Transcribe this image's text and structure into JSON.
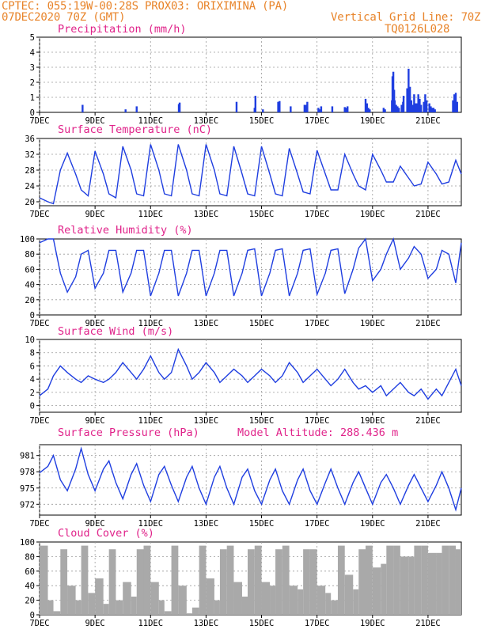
{
  "header": {
    "line1": "CPTEC:   055:19W-00:28S   PROX03: ORIXIMINA (PA)",
    "line2_left": "07DEC2020 70Z (GMT)",
    "line2_right": "Vertical Grid Line: 70Z",
    "line3_right": "TQ0126L028"
  },
  "colors": {
    "header": "#e8842a",
    "title": "#e0238a",
    "series": "#1f3ee0",
    "cloud": "#a9a9a9",
    "grid": "#9a9a9a"
  },
  "x_axis": {
    "labels": [
      "7DEC",
      "9DEC",
      "11DEC",
      "13DEC",
      "15DEC",
      "17DEC",
      "19DEC",
      "21DEC"
    ],
    "label_days": [
      0,
      2,
      4,
      6,
      8,
      10,
      12,
      14
    ],
    "range_days": [
      0,
      15.2
    ]
  },
  "chart_data": [
    {
      "type": "bar",
      "title": "Precipitation (mm/h)",
      "ylim": [
        0,
        5
      ],
      "yticks": [
        0,
        1,
        2,
        3,
        4,
        5
      ],
      "x_days": [
        1.55,
        3.1,
        3.5,
        5.02,
        5.05,
        7.1,
        7.75,
        7.78,
        8.05,
        8.6,
        8.65,
        9.05,
        9.55,
        9.6,
        9.62,
        9.65,
        10.05,
        10.1,
        10.15,
        10.55,
        11.0,
        11.05,
        11.1,
        11.75,
        11.8,
        11.85,
        11.9,
        12.4,
        12.45,
        12.7,
        12.72,
        12.75,
        12.78,
        12.8,
        12.85,
        12.9,
        12.95,
        13.05,
        13.1,
        13.12,
        13.25,
        13.3,
        13.35,
        13.4,
        13.45,
        13.5,
        13.55,
        13.6,
        13.65,
        13.7,
        13.75,
        13.85,
        13.9,
        13.95,
        14.05,
        14.1,
        14.15,
        14.2,
        14.25,
        14.9,
        14.95,
        15.0,
        15.05
      ],
      "values": [
        0.5,
        0.2,
        0.4,
        0.55,
        0.65,
        0.7,
        0.3,
        1.1,
        0.2,
        0.7,
        0.75,
        0.4,
        0.5,
        0.5,
        0.4,
        0.7,
        0.3,
        0.2,
        0.4,
        0.4,
        0.35,
        0.3,
        0.4,
        0.9,
        0.6,
        0.3,
        0.2,
        0.3,
        0.2,
        0.8,
        2.4,
        2.7,
        1.5,
        0.8,
        0.5,
        0.4,
        0.3,
        0.5,
        0.7,
        1.1,
        1.6,
        2.9,
        1.7,
        0.8,
        0.5,
        1.2,
        0.6,
        0.6,
        1.2,
        0.9,
        0.5,
        0.7,
        1.2,
        0.8,
        0.6,
        0.4,
        0.3,
        0.3,
        0.2,
        0.8,
        1.2,
        1.3,
        0.7
      ]
    },
    {
      "type": "line",
      "title": "Surface Temperature (nC)",
      "ylim": [
        19,
        36
      ],
      "yticks": [
        20,
        24,
        28,
        32,
        36
      ],
      "x_days": [
        0,
        0.3,
        0.5,
        0.75,
        1.0,
        1.3,
        1.5,
        1.75,
        2.0,
        2.3,
        2.5,
        2.75,
        3.0,
        3.3,
        3.5,
        3.75,
        4.0,
        4.3,
        4.5,
        4.75,
        5.0,
        5.3,
        5.5,
        5.75,
        6.0,
        6.3,
        6.5,
        6.75,
        7.0,
        7.3,
        7.5,
        7.75,
        8.0,
        8.3,
        8.5,
        8.75,
        9.0,
        9.3,
        9.5,
        9.75,
        10.0,
        10.3,
        10.5,
        10.75,
        11.0,
        11.3,
        11.5,
        11.75,
        12.0,
        12.3,
        12.5,
        12.75,
        13.0,
        13.3,
        13.5,
        13.75,
        14.0,
        14.3,
        14.5,
        14.75,
        15.0,
        15.2
      ],
      "values": [
        21,
        20,
        19.5,
        28,
        32.3,
        27,
        23,
        21.5,
        32.8,
        27,
        22,
        21,
        34,
        28,
        22,
        21.5,
        34.5,
        28,
        22,
        21.5,
        34.5,
        28,
        22,
        21.5,
        34.5,
        28,
        22,
        21.5,
        34,
        27,
        22,
        21.5,
        34,
        27,
        22,
        21.5,
        33.5,
        27,
        22.5,
        22,
        33,
        27,
        23,
        23,
        32,
        27,
        24,
        23,
        32,
        28,
        25,
        25,
        29,
        26,
        24,
        24.5,
        30,
        27,
        24.5,
        25,
        30.5,
        27
      ]
    },
    {
      "type": "line",
      "title": "Relative Humidity (%)",
      "ylim": [
        0,
        100
      ],
      "yticks": [
        0,
        20,
        40,
        60,
        80,
        100
      ],
      "x_days": [
        0,
        0.3,
        0.5,
        0.75,
        1.0,
        1.3,
        1.5,
        1.75,
        2.0,
        2.3,
        2.5,
        2.75,
        3.0,
        3.3,
        3.5,
        3.75,
        4.0,
        4.3,
        4.5,
        4.75,
        5.0,
        5.3,
        5.5,
        5.75,
        6.0,
        6.3,
        6.5,
        6.75,
        7.0,
        7.3,
        7.5,
        7.75,
        8.0,
        8.3,
        8.5,
        8.75,
        9.0,
        9.3,
        9.5,
        9.75,
        10.0,
        10.3,
        10.5,
        10.75,
        11.0,
        11.3,
        11.5,
        11.75,
        12.0,
        12.3,
        12.5,
        12.75,
        13.0,
        13.3,
        13.5,
        13.75,
        14.0,
        14.3,
        14.5,
        14.75,
        15.0,
        15.2
      ],
      "values": [
        95,
        100,
        100,
        55,
        30,
        50,
        80,
        85,
        35,
        55,
        85,
        85,
        30,
        55,
        85,
        85,
        25,
        55,
        85,
        85,
        25,
        55,
        85,
        85,
        25,
        55,
        85,
        85,
        25,
        55,
        85,
        87,
        25,
        55,
        85,
        87,
        25,
        55,
        85,
        87,
        27,
        55,
        85,
        87,
        28,
        60,
        88,
        100,
        45,
        60,
        80,
        100,
        60,
        75,
        90,
        80,
        48,
        60,
        85,
        80,
        42,
        95
      ]
    },
    {
      "type": "line",
      "title": "Surface Wind (m/s)",
      "ylim": [
        -1,
        10
      ],
      "yticks": [
        0,
        2,
        4,
        6,
        8,
        10
      ],
      "x_days": [
        0,
        0.3,
        0.5,
        0.75,
        1.0,
        1.3,
        1.5,
        1.75,
        2.0,
        2.3,
        2.5,
        2.75,
        3.0,
        3.3,
        3.5,
        3.75,
        4.0,
        4.3,
        4.5,
        4.75,
        5.0,
        5.3,
        5.5,
        5.75,
        6.0,
        6.3,
        6.5,
        6.75,
        7.0,
        7.3,
        7.5,
        7.75,
        8.0,
        8.3,
        8.5,
        8.75,
        9.0,
        9.3,
        9.5,
        9.75,
        10.0,
        10.3,
        10.5,
        10.75,
        11.0,
        11.3,
        11.5,
        11.75,
        12.0,
        12.3,
        12.5,
        12.75,
        13.0,
        13.3,
        13.5,
        13.75,
        14.0,
        14.3,
        14.5,
        14.75,
        15.0,
        15.2
      ],
      "values": [
        1.5,
        2.5,
        4.5,
        6,
        5,
        4,
        3.5,
        4.5,
        4,
        3.5,
        4,
        5,
        6.5,
        5,
        4,
        5.5,
        7.5,
        5,
        4,
        5,
        8.5,
        6,
        4,
        5,
        6.5,
        5,
        3.5,
        4.5,
        5.5,
        4.5,
        3.5,
        4.5,
        5.5,
        4.5,
        3.5,
        4.5,
        6.5,
        5,
        3.5,
        4.5,
        5.5,
        4,
        3,
        4,
        5.5,
        3.5,
        2.5,
        3,
        2,
        3,
        1.5,
        2.5,
        3.5,
        2,
        1.5,
        2.5,
        1,
        2.5,
        1.5,
        3.5,
        5.5,
        3
      ]
    },
    {
      "type": "line",
      "title": "Surface Pressure (hPa)",
      "annotation": "Model Altitude: 288.436 m",
      "ylim": [
        970,
        983
      ],
      "yticks": [
        972,
        975,
        978,
        981
      ],
      "x_days": [
        0,
        0.3,
        0.5,
        0.75,
        1.0,
        1.3,
        1.5,
        1.75,
        2.0,
        2.3,
        2.5,
        2.75,
        3.0,
        3.3,
        3.5,
        3.75,
        4.0,
        4.3,
        4.5,
        4.75,
        5.0,
        5.3,
        5.5,
        5.75,
        6.0,
        6.3,
        6.5,
        6.75,
        7.0,
        7.3,
        7.5,
        7.75,
        8.0,
        8.3,
        8.5,
        8.75,
        9.0,
        9.3,
        9.5,
        9.75,
        10.0,
        10.3,
        10.5,
        10.75,
        11.0,
        11.3,
        11.5,
        11.75,
        12.0,
        12.3,
        12.5,
        12.75,
        13.0,
        13.3,
        13.5,
        13.75,
        14.0,
        14.3,
        14.5,
        14.75,
        15.0,
        15.2
      ],
      "values": [
        977.8,
        979,
        981,
        976.5,
        974.5,
        978.5,
        982.3,
        977.5,
        974.5,
        978.5,
        980,
        976,
        973,
        977.5,
        979.5,
        975.5,
        972.5,
        977.5,
        979,
        975.5,
        972.5,
        977,
        979,
        975,
        972,
        977,
        979,
        975,
        972,
        977,
        978.5,
        974.5,
        972,
        976.5,
        978.5,
        974.5,
        972,
        976.5,
        978.5,
        974.5,
        972,
        976,
        978.5,
        975,
        972,
        976,
        978,
        975,
        972,
        976,
        977.5,
        975,
        972,
        975.5,
        977.5,
        975,
        972.5,
        975.5,
        978,
        975,
        971,
        975
      ]
    },
    {
      "type": "area",
      "title": "Cloud Cover (%)",
      "ylim": [
        0,
        100
      ],
      "yticks": [
        0,
        20,
        40,
        60,
        80,
        100
      ],
      "x_days": [
        0,
        0.3,
        0.5,
        0.75,
        1.0,
        1.3,
        1.5,
        1.75,
        2.0,
        2.3,
        2.5,
        2.75,
        3.0,
        3.3,
        3.5,
        3.75,
        4.0,
        4.3,
        4.5,
        4.75,
        5.0,
        5.3,
        5.5,
        5.75,
        6.0,
        6.3,
        6.5,
        6.75,
        7.0,
        7.3,
        7.5,
        7.75,
        8.0,
        8.3,
        8.5,
        8.75,
        9.0,
        9.3,
        9.5,
        9.75,
        10.0,
        10.3,
        10.5,
        10.75,
        11.0,
        11.3,
        11.5,
        11.75,
        12.0,
        12.3,
        12.5,
        12.75,
        13.0,
        13.3,
        13.5,
        13.75,
        14.0,
        14.3,
        14.5,
        14.75,
        15.0,
        15.2
      ],
      "values": [
        95,
        20,
        5,
        90,
        40,
        20,
        95,
        30,
        50,
        15,
        90,
        20,
        45,
        25,
        90,
        95,
        45,
        20,
        5,
        95,
        40,
        2,
        10,
        95,
        50,
        20,
        90,
        95,
        45,
        25,
        90,
        95,
        45,
        40,
        90,
        95,
        40,
        35,
        90,
        90,
        40,
        30,
        20,
        95,
        55,
        35,
        90,
        95,
        65,
        70,
        95,
        95,
        80,
        80,
        95,
        95,
        85,
        85,
        95,
        95,
        90,
        95
      ]
    }
  ]
}
